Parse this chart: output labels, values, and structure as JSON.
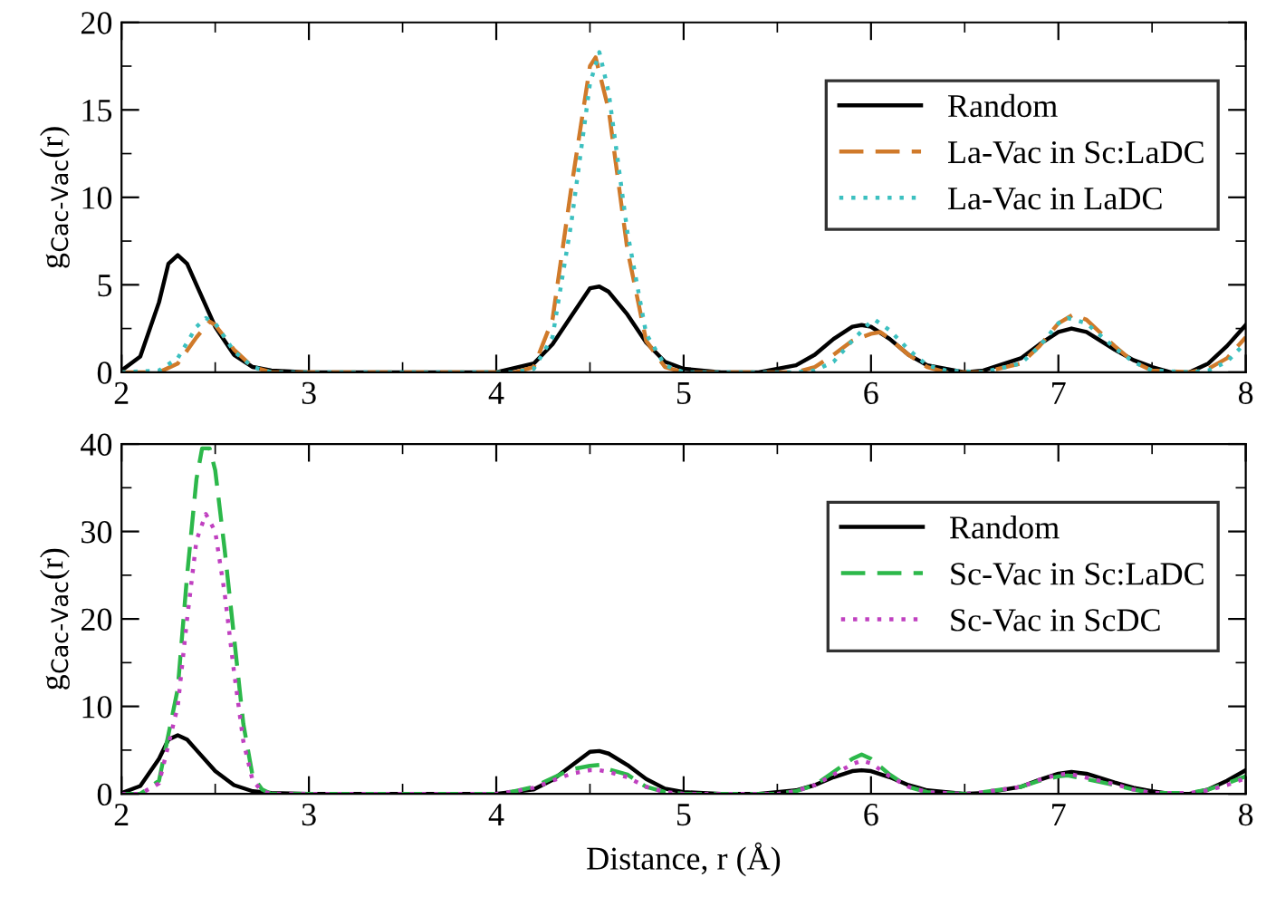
{
  "chart_data": [
    {
      "type": "line",
      "ylabel": "g$_{Cac-Vac}$(r)",
      "xlim": [
        2,
        8
      ],
      "xticks": [
        2,
        3,
        4,
        5,
        6,
        7,
        8
      ],
      "ylim": [
        0,
        20
      ],
      "yticks": [
        0,
        5,
        10,
        15,
        20
      ],
      "legend": "top right",
      "grid": false,
      "series": [
        {
          "name": "Random",
          "color": "#000000",
          "line_style": "solid",
          "x": [
            2.0,
            2.1,
            2.2,
            2.25,
            2.3,
            2.35,
            2.4,
            2.5,
            2.6,
            2.7,
            2.8,
            3.0,
            3.8,
            4.0,
            4.2,
            4.3,
            4.4,
            4.5,
            4.55,
            4.6,
            4.7,
            4.8,
            4.9,
            5.0,
            5.2,
            5.4,
            5.6,
            5.7,
            5.8,
            5.9,
            5.95,
            6.0,
            6.1,
            6.2,
            6.3,
            6.5,
            6.6,
            6.8,
            6.9,
            7.0,
            7.07,
            7.15,
            7.3,
            7.4,
            7.5,
            7.6,
            7.7,
            7.8,
            7.9,
            8.0
          ],
          "values": [
            0.1,
            0.9,
            4.0,
            6.2,
            6.7,
            6.2,
            5.0,
            2.6,
            1.0,
            0.3,
            0.1,
            0,
            0,
            0,
            0.5,
            1.6,
            3.2,
            4.8,
            4.9,
            4.6,
            3.3,
            1.7,
            0.6,
            0.2,
            0,
            0,
            0.4,
            1.0,
            1.9,
            2.6,
            2.7,
            2.6,
            1.9,
            1.0,
            0.4,
            0,
            0.1,
            0.8,
            1.6,
            2.3,
            2.5,
            2.3,
            1.3,
            0.7,
            0.3,
            0,
            0,
            0.5,
            1.5,
            2.7
          ]
        },
        {
          "name": "La-Vac in Sc:LaDC",
          "color": "#d07a2a",
          "line_style": "dashed",
          "x": [
            2.0,
            2.2,
            2.3,
            2.4,
            2.47,
            2.5,
            2.6,
            2.7,
            2.8,
            3.0,
            4.1,
            4.2,
            4.3,
            4.4,
            4.5,
            4.53,
            4.6,
            4.7,
            4.8,
            4.9,
            5.0,
            5.6,
            5.7,
            5.8,
            5.9,
            6.0,
            6.05,
            6.1,
            6.2,
            6.3,
            6.4,
            6.6,
            6.8,
            6.9,
            7.0,
            7.08,
            7.15,
            7.3,
            7.4,
            7.5,
            7.7,
            7.8,
            7.9,
            8.0
          ],
          "values": [
            0,
            0,
            0.5,
            2.0,
            2.9,
            2.7,
            1.3,
            0.3,
            0,
            0,
            0,
            0.3,
            3.0,
            10.5,
            17.5,
            18.0,
            15.0,
            7.0,
            1.8,
            0.3,
            0,
            0,
            0.3,
            1.0,
            1.8,
            2.2,
            2.3,
            1.9,
            1.0,
            0.3,
            0,
            0,
            0.5,
            1.5,
            2.8,
            3.3,
            3.0,
            1.5,
            0.6,
            0.1,
            0,
            0.2,
            0.8,
            2.0
          ]
        },
        {
          "name": "La-Vac in LaDC",
          "color": "#3cc0c0",
          "line_style": "dotted",
          "x": [
            2.0,
            2.2,
            2.3,
            2.4,
            2.45,
            2.5,
            2.6,
            2.7,
            2.8,
            3.0,
            4.1,
            4.2,
            4.3,
            4.4,
            4.5,
            4.55,
            4.6,
            4.7,
            4.8,
            4.9,
            5.0,
            5.6,
            5.7,
            5.8,
            5.9,
            6.0,
            6.02,
            6.1,
            6.2,
            6.3,
            6.4,
            6.6,
            6.8,
            6.9,
            7.0,
            7.05,
            7.15,
            7.3,
            7.4,
            7.5,
            7.7,
            7.8,
            7.9,
            8.0
          ],
          "values": [
            0,
            0.1,
            0.8,
            2.6,
            3.1,
            2.8,
            1.2,
            0.3,
            0,
            0,
            0,
            0.2,
            2.0,
            8.5,
            16.5,
            18.3,
            16.0,
            8.0,
            2.2,
            0.4,
            0,
            0,
            0.1,
            0.6,
            1.8,
            2.9,
            3.0,
            2.4,
            1.3,
            0.4,
            0.1,
            0,
            0.5,
            1.5,
            2.8,
            3.1,
            2.8,
            1.4,
            0.6,
            0.1,
            0,
            0.1,
            0.6,
            1.7
          ]
        }
      ]
    },
    {
      "type": "line",
      "xlabel": "Distance, r (Å)",
      "ylabel": "g$_{Cac-Vac}$(r)",
      "xlim": [
        2,
        8
      ],
      "xticks": [
        2,
        3,
        4,
        5,
        6,
        7,
        8
      ],
      "ylim": [
        0,
        40
      ],
      "yticks": [
        0,
        10,
        20,
        30,
        40
      ],
      "legend": "top right",
      "grid": false,
      "series": [
        {
          "name": "Random",
          "color": "#000000",
          "line_style": "solid",
          "x": [
            2.0,
            2.1,
            2.2,
            2.25,
            2.3,
            2.35,
            2.4,
            2.5,
            2.6,
            2.7,
            2.8,
            3.0,
            3.8,
            4.0,
            4.2,
            4.3,
            4.4,
            4.5,
            4.55,
            4.6,
            4.7,
            4.8,
            4.9,
            5.0,
            5.2,
            5.4,
            5.6,
            5.7,
            5.8,
            5.9,
            5.95,
            6.0,
            6.1,
            6.2,
            6.3,
            6.5,
            6.6,
            6.8,
            6.9,
            7.0,
            7.07,
            7.15,
            7.3,
            7.4,
            7.5,
            7.6,
            7.7,
            7.8,
            7.9,
            8.0
          ],
          "values": [
            0.1,
            0.9,
            4.0,
            6.2,
            6.7,
            6.2,
            5.0,
            2.6,
            1.0,
            0.3,
            0.1,
            0,
            0,
            0,
            0.5,
            1.6,
            3.2,
            4.8,
            4.9,
            4.6,
            3.3,
            1.7,
            0.6,
            0.2,
            0,
            0,
            0.4,
            1.0,
            1.9,
            2.6,
            2.7,
            2.6,
            1.9,
            1.0,
            0.4,
            0,
            0.1,
            0.8,
            1.6,
            2.3,
            2.5,
            2.3,
            1.3,
            0.7,
            0.3,
            0,
            0,
            0.5,
            1.5,
            2.7
          ]
        },
        {
          "name": "Sc-Vac in Sc:LaDC",
          "color": "#2cb84a",
          "line_style": "dashed",
          "x": [
            2.0,
            2.1,
            2.2,
            2.3,
            2.35,
            2.4,
            2.43,
            2.47,
            2.5,
            2.55,
            2.6,
            2.65,
            2.7,
            2.75,
            2.8,
            4.0,
            4.1,
            4.2,
            4.3,
            4.4,
            4.5,
            4.55,
            4.6,
            4.7,
            4.8,
            4.9,
            5.0,
            5.5,
            5.6,
            5.7,
            5.8,
            5.9,
            5.95,
            6.0,
            6.1,
            6.2,
            6.3,
            6.5,
            6.6,
            6.8,
            6.9,
            7.0,
            7.05,
            7.1,
            7.3,
            7.4,
            7.5,
            7.7,
            7.8,
            7.9,
            8.0
          ],
          "values": [
            0,
            0,
            1.5,
            12,
            25,
            36,
            39.5,
            39.5,
            37,
            28,
            18,
            8,
            2,
            0.5,
            0,
            0,
            0.3,
            0.8,
            1.8,
            2.8,
            3.2,
            3.3,
            2.8,
            2.2,
            0.8,
            0.2,
            0,
            0,
            0.3,
            1.0,
            2.5,
            4.0,
            4.5,
            4.0,
            2.2,
            0.8,
            0.2,
            0,
            0.2,
            0.8,
            1.5,
            2.0,
            2.1,
            1.9,
            1.0,
            0.5,
            0.1,
            0.1,
            0.5,
            1.2,
            2.0
          ]
        },
        {
          "name": "Sc-Vac in ScDC",
          "color": "#c040c0",
          "line_style": "dotted",
          "x": [
            2.0,
            2.1,
            2.2,
            2.3,
            2.35,
            2.4,
            2.45,
            2.5,
            2.55,
            2.6,
            2.65,
            2.7,
            2.75,
            2.8,
            4.0,
            4.1,
            4.2,
            4.3,
            4.4,
            4.5,
            4.55,
            4.6,
            4.7,
            4.8,
            4.9,
            5.0,
            5.5,
            5.6,
            5.7,
            5.8,
            5.9,
            5.95,
            6.0,
            6.1,
            6.2,
            6.3,
            6.5,
            6.6,
            6.8,
            6.9,
            7.0,
            7.05,
            7.1,
            7.3,
            7.4,
            7.5,
            7.7,
            7.8,
            7.9,
            8.0
          ],
          "values": [
            0,
            0,
            1.2,
            10,
            20,
            29,
            32,
            30,
            23,
            14,
            6,
            1.5,
            0.3,
            0,
            0,
            0.3,
            0.7,
            1.5,
            2.3,
            2.7,
            2.7,
            2.5,
            1.9,
            0.8,
            0.2,
            0,
            0,
            0.3,
            1.0,
            2.2,
            3.4,
            3.8,
            3.5,
            2.0,
            0.8,
            0.2,
            0,
            0.2,
            0.8,
            1.6,
            2.2,
            2.3,
            2.1,
            1.1,
            0.5,
            0.1,
            0.1,
            0.4,
            1.0,
            1.8
          ]
        }
      ]
    }
  ]
}
